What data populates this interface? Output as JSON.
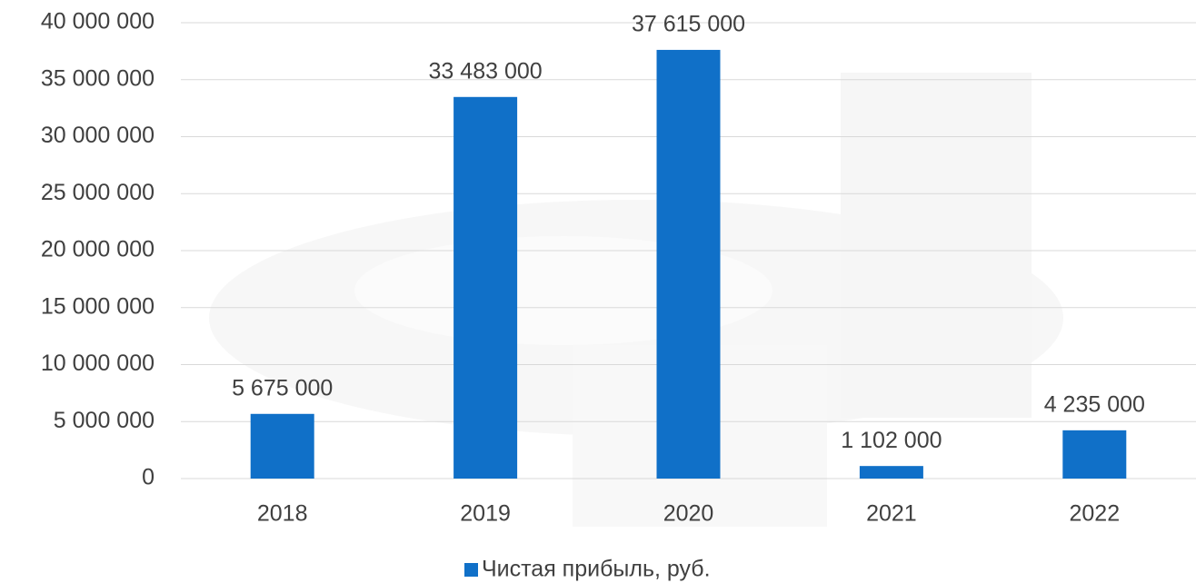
{
  "chart_data": {
    "type": "bar",
    "categories": [
      "2018",
      "2019",
      "2020",
      "2021",
      "2022"
    ],
    "series": [
      {
        "name": "Чистая прибыль, руб.",
        "color": "#1070c8",
        "values": [
          5675000,
          33483000,
          37615000,
          1102000,
          4235000
        ],
        "value_labels": [
          "5 675 000",
          "33 483 000",
          "37 615 000",
          "1 102 000",
          "4 235 000"
        ]
      }
    ],
    "ylim": [
      0,
      40000000
    ],
    "yticks": [
      0,
      {
        "value": 5000000,
        "label": "5 000 000"
      },
      {
        "value": 10000000,
        "label": "10 000 000"
      },
      {
        "value": 15000000,
        "label": "15 000 000"
      },
      {
        "value": 20000000,
        "label": "20 000 000"
      },
      {
        "value": 25000000,
        "label": "25 000 000"
      },
      {
        "value": 30000000,
        "label": "30 000 000"
      },
      {
        "value": 35000000,
        "label": "35 000 000"
      },
      {
        "value": 40000000,
        "label": "40 000 000"
      }
    ],
    "grid": true,
    "legend": "bottom"
  }
}
